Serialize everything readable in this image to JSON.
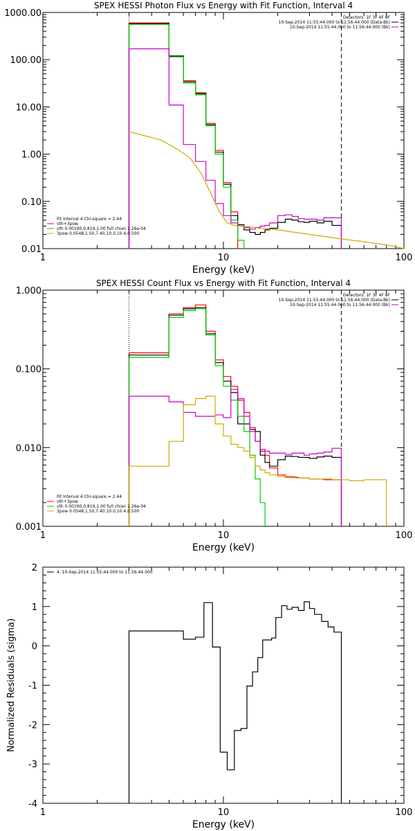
{
  "chart_data": [
    {
      "type": "line",
      "title": "SPEX HESSI Photon Flux vs Energy with Fit Function, Interval 4",
      "xlabel": "Energy (keV)",
      "ylabel": "",
      "xscale": "log",
      "yscale": "log",
      "xlim": [
        1,
        100
      ],
      "ylim": [
        0.01,
        1000
      ],
      "x_ticks": [
        "1",
        "10",
        "100"
      ],
      "y_ticks": [
        "1000.00",
        "100.00",
        "10.00",
        "1.00",
        "0.10",
        "0.01"
      ],
      "vlines": [
        {
          "x": 3,
          "style": "dotted",
          "color": "#000000"
        },
        {
          "x": 45,
          "style": "dashed",
          "color": "#000000"
        }
      ],
      "legend_top_right": {
        "position": "top-right",
        "lines": [
          {
            "text": "Detectors: 1F 3F 4F 8F",
            "color": ""
          },
          {
            "text": "10-Sep-2014 11:55:44.000 to 11:56:44.000 (Data-Bk)",
            "color": "#000000"
          },
          {
            "text": "10-Sep-2014 11:55:44.000 to 11:56:44.000 (Bk)",
            "color": "#cc00cc"
          }
        ]
      },
      "legend_bottom_left": {
        "position": "bottom-left",
        "lines": [
          {
            "text": "Fit Interval 4   Chi-square = 2.44",
            "color": ""
          },
          {
            "text": "vth+3pow",
            "color": "#ff0000"
          },
          {
            "text": "vth 0.00190,0.819,1.00   full chian 1.26e-04",
            "color": "#00cc00"
          },
          {
            "text": "3pow 0.0548,1.50,7.40,10.0,10.4,0.500",
            "color": "#ccaa00"
          }
        ]
      },
      "series": [
        {
          "color": "#ff0000",
          "step": true,
          "x": [
            3,
            4,
            5,
            6,
            7,
            8,
            9,
            10,
            11,
            12
          ],
          "y": [
            600,
            600,
            120,
            36,
            20,
            4.5,
            1.2,
            0.25,
            0.06,
            0.013
          ]
        },
        {
          "color": "#000000",
          "step": true,
          "x": [
            3,
            4,
            5,
            6,
            7,
            8,
            9,
            10,
            11,
            12,
            13,
            14,
            15,
            16,
            17,
            18,
            20,
            22,
            24,
            26,
            28,
            30,
            33,
            36,
            40,
            45
          ],
          "y": [
            580,
            580,
            120,
            34,
            19,
            4.2,
            1.1,
            0.23,
            0.05,
            0.032,
            0.025,
            0.022,
            0.02,
            0.022,
            0.025,
            0.027,
            0.036,
            0.042,
            0.04,
            0.037,
            0.036,
            0.038,
            0.035,
            0.038,
            0.031,
            0.031
          ]
        },
        {
          "color": "#00cc00",
          "step": true,
          "x": [
            3,
            4,
            5,
            6,
            7,
            8,
            9,
            10,
            11,
            12,
            13
          ],
          "y": [
            560,
            560,
            115,
            32,
            18,
            4,
            1.0,
            0.2,
            0.04,
            0.015,
            0.006
          ]
        },
        {
          "color": "#cc00cc",
          "step": true,
          "x": [
            3,
            4,
            5,
            6,
            7,
            8,
            9,
            10,
            11,
            12,
            13,
            14,
            15,
            16,
            17,
            18,
            20,
            22,
            24,
            26,
            28,
            30,
            33,
            36,
            40,
            45
          ],
          "y": [
            170,
            170,
            11,
            1.6,
            0.7,
            0.28,
            0.09,
            0.05,
            0.035,
            0.03,
            0.028,
            0.026,
            0.028,
            0.03,
            0.031,
            0.035,
            0.05,
            0.052,
            0.048,
            0.043,
            0.042,
            0.042,
            0.04,
            0.045,
            0.045,
            0.045
          ]
        },
        {
          "color": "#ccaa00",
          "step": false,
          "x": [
            3,
            3.6,
            4.5,
            5.5,
            6.5,
            7.5,
            8.5,
            9.5,
            10.5,
            11.5,
            12.5,
            14,
            16,
            20,
            30,
            45,
            60,
            80,
            100
          ],
          "y": [
            3.0,
            2.5,
            2.0,
            1.3,
            0.85,
            0.4,
            0.15,
            0.06,
            0.035,
            0.031,
            0.03,
            0.029,
            0.027,
            0.025,
            0.02,
            0.016,
            0.014,
            0.012,
            0.01
          ]
        }
      ]
    },
    {
      "type": "line",
      "title": "SPEX HESSI Count Flux vs Energy with Fit Function, Interval 4",
      "xlabel": "Energy (keV)",
      "ylabel": "",
      "xscale": "log",
      "yscale": "log",
      "xlim": [
        1,
        100
      ],
      "ylim": [
        0.001,
        1
      ],
      "x_ticks": [
        "1",
        "10",
        "100"
      ],
      "y_ticks": [
        "1.000",
        "0.100",
        "0.010",
        "0.001"
      ],
      "vlines": [
        {
          "x": 3,
          "style": "dotted",
          "color": "#000000"
        },
        {
          "x": 45,
          "style": "dashed",
          "color": "#000000"
        }
      ],
      "legend_top_right": {
        "position": "top-right",
        "lines": [
          {
            "text": "Detectors: 1F 3F 4F 8F",
            "color": ""
          },
          {
            "text": "10-Sep-2014 11:55:44.000 to 11:56:44.000 (Data-Bk)",
            "color": "#000000"
          },
          {
            "text": "10-Sep-2014 11:55:44.000 to 11:56:44.000 (Bk)",
            "color": "#cc00cc"
          }
        ]
      },
      "legend_bottom_left": {
        "position": "bottom-left",
        "lines": [
          {
            "text": "Fit Interval 4   Chi-square = 2.44",
            "color": ""
          },
          {
            "text": "vth+3pow",
            "color": "#ff0000"
          },
          {
            "text": "vth 0.00190,0.819,1.00   full chian 1.26e-04",
            "color": "#00cc00"
          },
          {
            "text": "3pow 0.0548,1.50,7.40,10.0,10.4,0.500",
            "color": "#ccaa00"
          }
        ]
      },
      "series": [
        {
          "color": "#ff0000",
          "step": true,
          "x": [
            3,
            4,
            5,
            6,
            7,
            8,
            9,
            10,
            11,
            12,
            13,
            14,
            15,
            16,
            17,
            18,
            20,
            22,
            24,
            26,
            28,
            30,
            33,
            36,
            40,
            45
          ],
          "y": [
            0.16,
            0.16,
            0.5,
            0.6,
            0.65,
            0.3,
            0.13,
            0.08,
            0.06,
            0.04,
            0.028,
            0.018,
            0.012,
            0.009,
            0.008,
            0.0055,
            0.0045,
            0.0042,
            0.0042,
            0.0041,
            0.0041,
            0.004,
            0.004,
            0.0039,
            0.0039,
            0.0039
          ]
        },
        {
          "color": "#000000",
          "step": true,
          "x": [
            3,
            4,
            5,
            6,
            7,
            8,
            9,
            10,
            11,
            12,
            13,
            14,
            15,
            16,
            17,
            18,
            20,
            22,
            24,
            26,
            28,
            30,
            33,
            36,
            40,
            45
          ],
          "y": [
            0.15,
            0.15,
            0.48,
            0.58,
            0.6,
            0.28,
            0.12,
            0.07,
            0.05,
            0.02,
            0.02,
            0.017,
            0.016,
            0.008,
            0.0065,
            0.0058,
            0.007,
            0.0078,
            0.0077,
            0.0075,
            0.0075,
            0.0073,
            0.0076,
            0.0078,
            0.0075,
            0.0056
          ]
        },
        {
          "color": "#00cc00",
          "step": true,
          "x": [
            3,
            4,
            5,
            6,
            7,
            8,
            9,
            10,
            11,
            12,
            13,
            14,
            15,
            16,
            17
          ],
          "y": [
            0.14,
            0.14,
            0.45,
            0.55,
            0.58,
            0.27,
            0.11,
            0.06,
            0.04,
            0.025,
            0.016,
            0.008,
            0.004,
            0.002,
            0.0006
          ]
        },
        {
          "color": "#cc00cc",
          "step": true,
          "x": [
            3,
            4,
            5,
            6,
            7,
            8,
            9,
            10,
            11,
            12,
            13,
            14,
            15,
            16,
            17,
            18,
            20,
            22,
            24,
            26,
            28,
            30,
            33,
            36,
            40,
            45
          ],
          "y": [
            0.045,
            0.045,
            0.038,
            0.028,
            0.025,
            0.025,
            0.026,
            0.024,
            0.055,
            0.042,
            0.025,
            0.016,
            0.012,
            0.0095,
            0.009,
            0.0085,
            0.0085,
            0.0082,
            0.0085,
            0.0085,
            0.008,
            0.0083,
            0.0085,
            0.0088,
            0.0098,
            0.0098
          ]
        },
        {
          "color": "#ccaa00",
          "step": true,
          "x": [
            3,
            4,
            5,
            6,
            7,
            8,
            9,
            10,
            11,
            12,
            13,
            14,
            15,
            16,
            17,
            18,
            20,
            25,
            30,
            40,
            50,
            60,
            80
          ],
          "y": [
            0.0058,
            0.0058,
            0.012,
            0.035,
            0.042,
            0.045,
            0.02,
            0.014,
            0.011,
            0.01,
            0.009,
            0.0075,
            0.0058,
            0.0052,
            0.0048,
            0.0045,
            0.0043,
            0.0041,
            0.004,
            0.0039,
            0.0038,
            0.0039,
            0.0038
          ]
        }
      ]
    },
    {
      "type": "line",
      "title": "",
      "xlabel": "Energy (keV)",
      "ylabel": "Normalized Residuals (sigma)",
      "xscale": "log",
      "yscale": "linear",
      "xlim": [
        1,
        100
      ],
      "ylim": [
        -4,
        2
      ],
      "x_ticks": [
        "1",
        "10",
        "100"
      ],
      "y_ticks": [
        "2",
        "1",
        "0",
        "-1",
        "-2",
        "-3",
        "-4"
      ],
      "legend": {
        "position": "top-left",
        "lines": [
          {
            "text": "4. 10-Sep-2014 11:55:44.000 to 11:56:44.000",
            "color": "#000000"
          }
        ]
      },
      "series": [
        {
          "color": "#000000",
          "step": true,
          "x": [
            3,
            5,
            6,
            7,
            7.8,
            8.7,
            9.6,
            10.5,
            11.5,
            12.5,
            13.5,
            14.5,
            15.5,
            16.5,
            17.5,
            18.5,
            19.5,
            21,
            22.5,
            24,
            26,
            28,
            30,
            32,
            35,
            38,
            41,
            45
          ],
          "y": [
            0.38,
            0.38,
            0.17,
            0.22,
            1.1,
            -0.03,
            -2.7,
            -3.15,
            -2.15,
            -2.1,
            -1.02,
            -0.66,
            -0.3,
            0.15,
            0.15,
            0.2,
            0.72,
            1.02,
            0.93,
            0.98,
            0.9,
            1.12,
            0.95,
            0.8,
            0.62,
            0.48,
            0.35,
            0.35
          ]
        }
      ]
    }
  ]
}
